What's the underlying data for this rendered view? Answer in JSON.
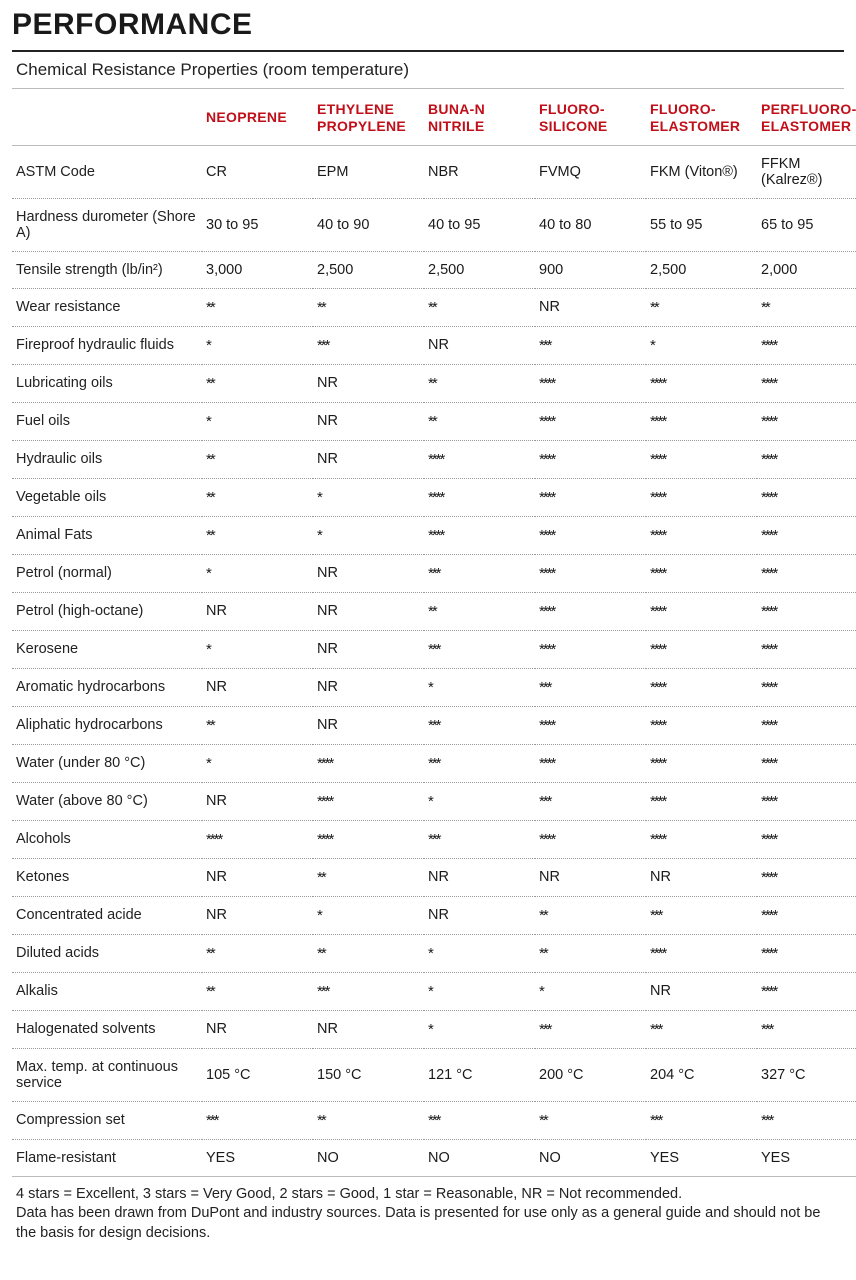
{
  "title": "PERFORMANCE",
  "subtitle": "Chemical Resistance Properties (room temperature)",
  "colors": {
    "header_red": "#c10f19",
    "text": "#1a1a1a",
    "rule": "#bbbbbb",
    "dot_rule": "#9a9a9a",
    "bg": "#ffffff"
  },
  "columns": [
    "NEOPRENE",
    "ETHYLENE PROPYLENE",
    "BUNA-N NITRILE",
    "FLUORO-SILICONE",
    "FLUORO-ELASTOMER",
    "PERFLUORO-ELASTOMER"
  ],
  "rows": [
    {
      "prop": "ASTM Code",
      "vals": [
        "CR",
        "EPM",
        "NBR",
        "FVMQ",
        "FKM (Viton®)",
        "FFKM (Kalrez®)"
      ]
    },
    {
      "prop": "Hardness durometer (Shore A)",
      "vals": [
        "30 to 95",
        "40 to 90",
        "40 to 95",
        "40 to 80",
        "55 to 95",
        "65 to 95"
      ]
    },
    {
      "prop": "Tensile strength (lb/in²)",
      "vals": [
        "3,000",
        "2,500",
        "2,500",
        "900",
        "2,500",
        "2,000"
      ]
    },
    {
      "prop": "Wear resistance",
      "vals": [
        "**",
        "**",
        "**",
        "NR",
        "**",
        "**"
      ]
    },
    {
      "prop": "Fireproof hydraulic fluids",
      "vals": [
        "*",
        "***",
        "NR",
        "***",
        "*",
        "****"
      ]
    },
    {
      "prop": "Lubricating oils",
      "vals": [
        "**",
        "NR",
        "**",
        "****",
        "****",
        "****"
      ]
    },
    {
      "prop": "Fuel oils",
      "vals": [
        "*",
        "NR",
        "**",
        "****",
        "****",
        "****"
      ]
    },
    {
      "prop": "Hydraulic oils",
      "vals": [
        "**",
        "NR",
        "****",
        "****",
        "****",
        "****"
      ]
    },
    {
      "prop": "Vegetable oils",
      "vals": [
        "**",
        "*",
        "****",
        "****",
        "****",
        "****"
      ]
    },
    {
      "prop": "Animal Fats",
      "vals": [
        "**",
        "*",
        "****",
        "****",
        "****",
        "****"
      ]
    },
    {
      "prop": "Petrol (normal)",
      "vals": [
        "*",
        "NR",
        "***",
        "****",
        "****",
        "****"
      ]
    },
    {
      "prop": "Petrol (high-octane)",
      "vals": [
        "NR",
        "NR",
        "**",
        "****",
        "****",
        "****"
      ]
    },
    {
      "prop": "Kerosene",
      "vals": [
        "*",
        "NR",
        "***",
        "****",
        "****",
        "****"
      ]
    },
    {
      "prop": "Aromatic hydrocarbons",
      "vals": [
        "NR",
        "NR",
        "*",
        "***",
        "****",
        "****"
      ]
    },
    {
      "prop": "Aliphatic hydrocarbons",
      "vals": [
        "**",
        "NR",
        "***",
        "****",
        "****",
        "****"
      ]
    },
    {
      "prop": "Water (under 80 °C)",
      "vals": [
        "*",
        "****",
        "***",
        "****",
        "****",
        "****"
      ]
    },
    {
      "prop": "Water (above 80 °C)",
      "vals": [
        "NR",
        "****",
        "*",
        "***",
        "****",
        "****"
      ]
    },
    {
      "prop": "Alcohols",
      "vals": [
        "****",
        "****",
        "***",
        "****",
        "****",
        "****"
      ]
    },
    {
      "prop": "Ketones",
      "vals": [
        "NR",
        "**",
        "NR",
        "NR",
        "NR",
        "****"
      ]
    },
    {
      "prop": "Concentrated acide",
      "vals": [
        "NR",
        "*",
        "NR",
        "**",
        "***",
        "****"
      ]
    },
    {
      "prop": "Diluted acids",
      "vals": [
        "**",
        "**",
        "*",
        "**",
        "****",
        "****"
      ]
    },
    {
      "prop": "Alkalis",
      "vals": [
        "**",
        "***",
        "*",
        "*",
        "NR",
        "****"
      ]
    },
    {
      "prop": "Halogenated solvents",
      "vals": [
        "NR",
        "NR",
        "*",
        "***",
        "***",
        "***"
      ]
    },
    {
      "prop": "Max. temp. at continuous service",
      "vals": [
        "105 °C",
        "150 °C",
        "121 °C",
        "200 °C",
        "204 °C",
        "327 °C"
      ]
    },
    {
      "prop": "Compression set",
      "vals": [
        "***",
        "**",
        "***",
        "**",
        "***",
        "***"
      ]
    },
    {
      "prop": "Flame-resistant",
      "vals": [
        "YES",
        "NO",
        "NO",
        "NO",
        "YES",
        "YES"
      ]
    }
  ],
  "footnote": "4 stars = Excellent, 3 stars = Very Good, 2 stars = Good, 1 star = Reasonable, NR = Not recommended.\nData has been drawn from DuPont and industry sources. Data is presented for use only as a general guide and should not be the basis for design decisions."
}
